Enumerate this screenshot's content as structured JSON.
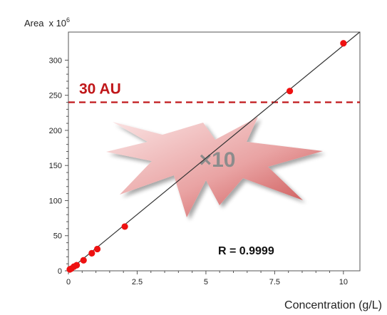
{
  "chart_data": {
    "type": "scatter",
    "ylabel": "Area",
    "ylabel_multiplier": "x 10",
    "ylabel_exponent": "6",
    "xlabel": "Concentration (g/L)",
    "xlim": [
      0,
      10.6
    ],
    "ylim": [
      0,
      340
    ],
    "x_ticks": [
      0,
      2.5,
      5,
      7.5,
      10
    ],
    "x_tick_labels": [
      "0",
      "2.5",
      "5",
      "7.5",
      "10"
    ],
    "y_ticks": [
      0,
      50,
      100,
      150,
      200,
      250,
      300
    ],
    "y_tick_labels": [
      "0",
      "50",
      "100",
      "150",
      "200",
      "250",
      "300"
    ],
    "points": [
      {
        "x": 0.05,
        "y": 2
      },
      {
        "x": 0.1,
        "y": 3
      },
      {
        "x": 0.2,
        "y": 6
      },
      {
        "x": 0.3,
        "y": 8
      },
      {
        "x": 0.55,
        "y": 15
      },
      {
        "x": 0.85,
        "y": 25
      },
      {
        "x": 1.05,
        "y": 31
      },
      {
        "x": 2.05,
        "y": 63
      },
      {
        "x": 8.05,
        "y": 256
      },
      {
        "x": 10.0,
        "y": 324
      }
    ],
    "fit_line": {
      "slope": 32.1,
      "intercept": 0,
      "x_range": [
        0,
        10.6
      ]
    },
    "reference_line": {
      "y": 240,
      "label": "30 AU"
    },
    "annotation": "×10",
    "stat_label": "R = 0.9999",
    "grid": false,
    "colors": {
      "points": "#ee1111",
      "fit_line": "#333333",
      "reference_line": "#c0171a",
      "burst_light": "#fbe6e6",
      "burst_dark": "#c84a4a"
    }
  }
}
